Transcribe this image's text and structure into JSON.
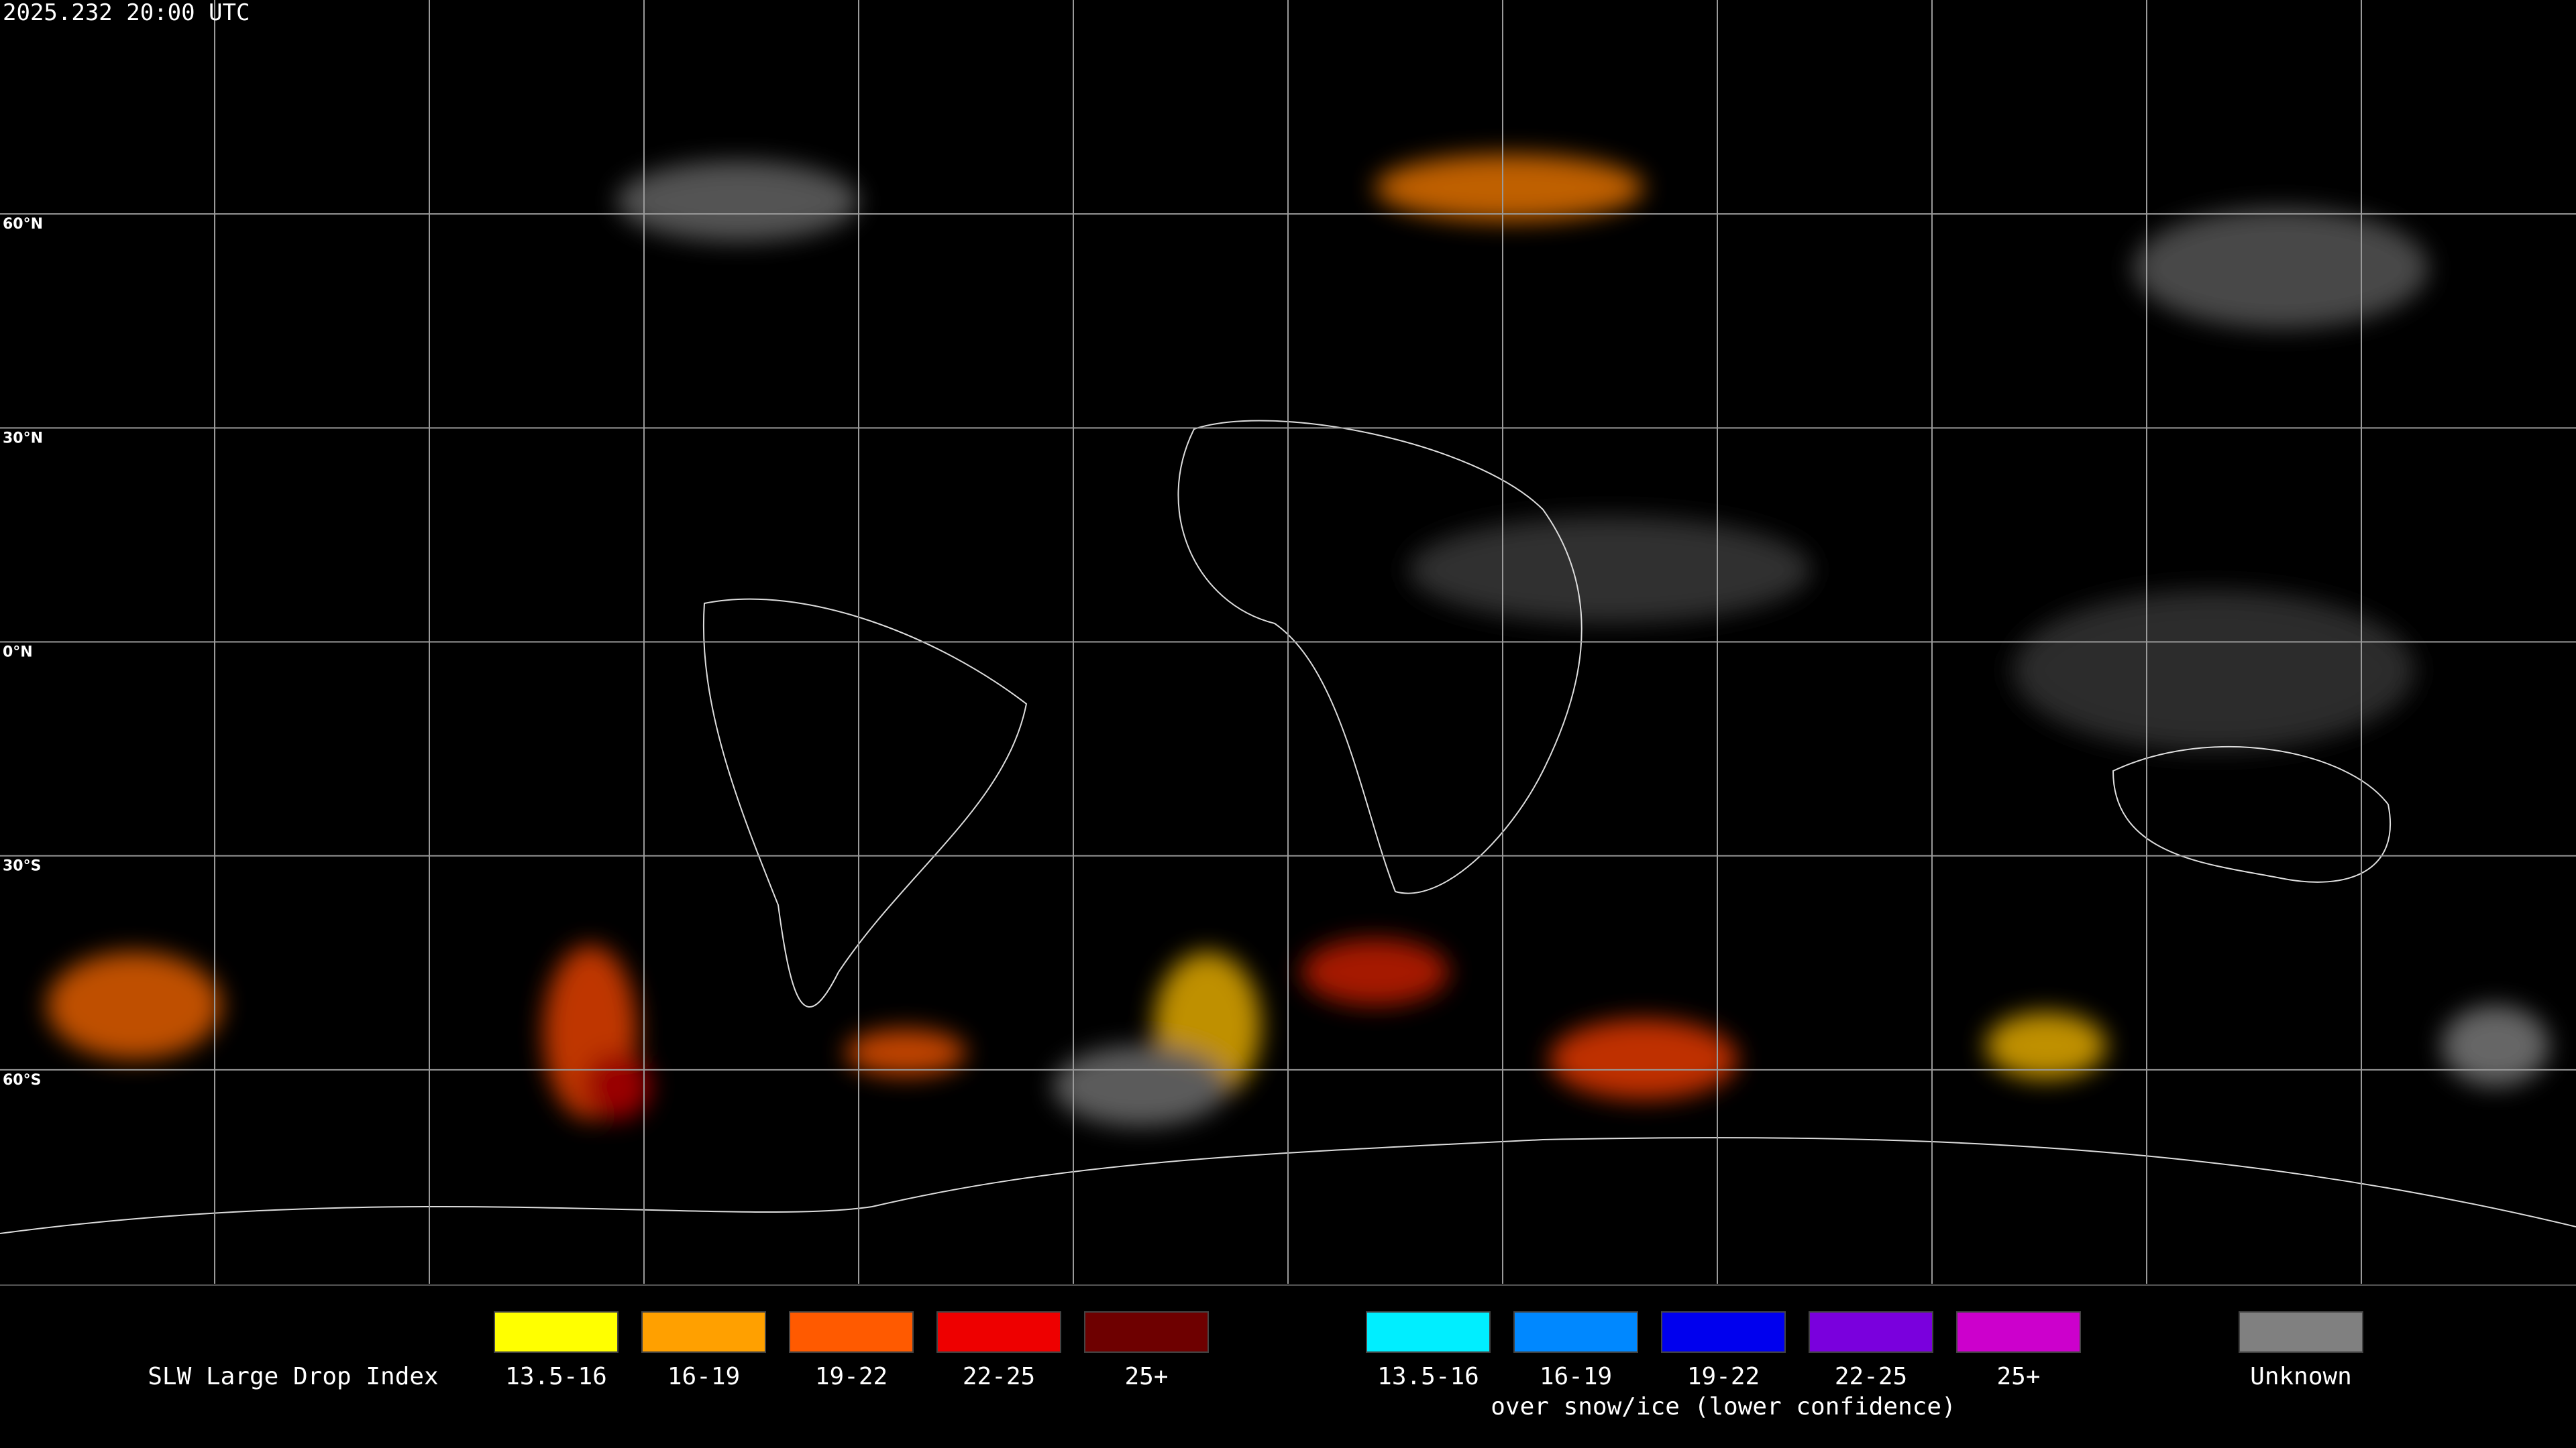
{
  "header": {
    "timestamp": "2025.232 20:00 UTC"
  },
  "map": {
    "latitude_labels": [
      "60°N",
      "30°N",
      "0°N",
      "30°S",
      "60°S"
    ]
  },
  "legend": {
    "title": "SLW Large Drop Index",
    "groups": [
      {
        "items": [
          {
            "label": "13.5-16",
            "color": "#ffff00"
          },
          {
            "label": "16-19",
            "color": "#ffa000"
          },
          {
            "label": "19-22",
            "color": "#ff5a00"
          },
          {
            "label": "22-25",
            "color": "#ee0000"
          },
          {
            "label": "25+",
            "color": "#6e0000"
          }
        ]
      },
      {
        "items": [
          {
            "label": "13.5-16",
            "color": "#00eeff"
          },
          {
            "label": "16-19",
            "color": "#0088ff"
          },
          {
            "label": "19-22",
            "color": "#0000ee"
          },
          {
            "label": "22-25",
            "color": "#7a00dd"
          },
          {
            "label": "25+",
            "color": "#cc00cc"
          }
        ],
        "caption": "over snow/ice (lower confidence)"
      },
      {
        "items": [
          {
            "label": "Unknown",
            "color": "#808080"
          }
        ]
      }
    ]
  }
}
